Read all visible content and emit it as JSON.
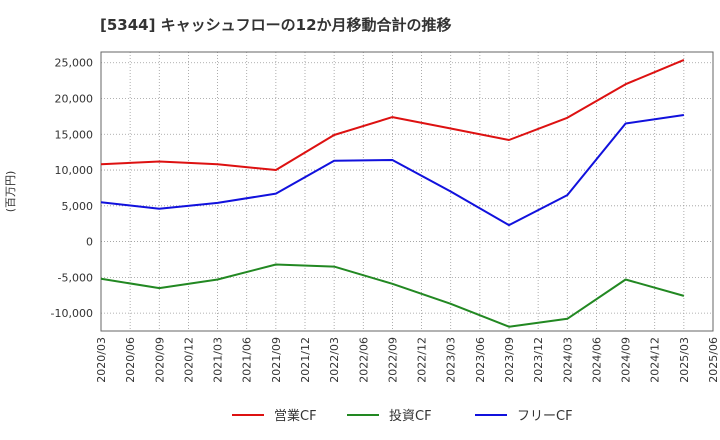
{
  "chart_data": {
    "type": "line",
    "title": "[5344]  キャッシュフローの12か月移動合計の推移",
    "ylabel": "(百万円)",
    "xlabel": "",
    "ylim": [
      -12500,
      26500
    ],
    "yticks": [
      -10000,
      -5000,
      0,
      5000,
      10000,
      15000,
      20000,
      25000
    ],
    "ytick_labels": [
      "-10,000",
      "-5,000",
      "0",
      "5,000",
      "10,000",
      "15,000",
      "20,000",
      "25,000"
    ],
    "x_ticks": [
      "2020/03",
      "2020/06",
      "2020/09",
      "2020/12",
      "2021/03",
      "2021/06",
      "2021/09",
      "2021/12",
      "2022/03",
      "2022/06",
      "2022/09",
      "2022/12",
      "2023/03",
      "2023/06",
      "2023/09",
      "2023/12",
      "2024/03",
      "2024/06",
      "2024/09",
      "2024/12",
      "2025/03",
      "2025/06"
    ],
    "x": [
      "2020/03",
      "2020/09",
      "2021/03",
      "2021/09",
      "2022/03",
      "2022/09",
      "2023/03",
      "2023/09",
      "2024/03",
      "2024/09",
      "2025/03"
    ],
    "series": [
      {
        "name": "営業CF",
        "color": "#dd1111",
        "values": [
          10800,
          11200,
          10800,
          10000,
          14900,
          17400,
          15800,
          14200,
          17300,
          22000,
          25400
        ]
      },
      {
        "name": "投資CF",
        "color": "#228822",
        "values": [
          -5200,
          -6500,
          -5300,
          -3200,
          -3500,
          -5900,
          -8700,
          -11900,
          -10800,
          -5300,
          -7600
        ]
      },
      {
        "name": "フリーCF",
        "color": "#1111dd",
        "values": [
          5500,
          4600,
          5400,
          6700,
          11300,
          11400,
          7000,
          2300,
          6500,
          16500,
          17700
        ]
      }
    ],
    "grid": true,
    "legend": "bottom"
  }
}
